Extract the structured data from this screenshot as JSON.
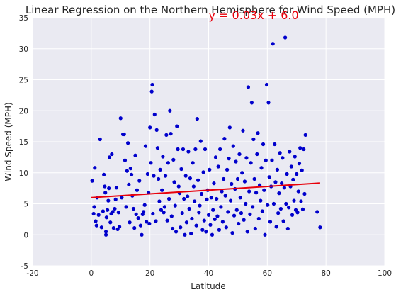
{
  "chart_data": {
    "type": "scatter",
    "title": "Linear Regression on the Northern Hemisphere for Wind Speed (MPH)",
    "xlabel": "Latitude",
    "ylabel": "Wind Speed (MPH)",
    "xlim": [
      -20,
      100
    ],
    "ylim": [
      -5,
      35
    ],
    "xticks": [
      -20,
      0,
      20,
      40,
      60,
      80,
      100
    ],
    "yticks": [
      -5,
      0,
      5,
      10,
      15,
      20,
      25,
      30,
      35
    ],
    "grid": true,
    "background_color": "#eaeaf2",
    "point_color": "#0000cc",
    "line_color": "#e8000b",
    "annotation": {
      "text": "y = 0.03x + 6.0",
      "x": 40,
      "y": 35
    },
    "regression": {
      "slope": 0.03,
      "intercept": 6.0,
      "x_range": [
        0,
        78
      ]
    },
    "points": [
      [
        0.3,
        8.7
      ],
      [
        0.8,
        3.4
      ],
      [
        1.0,
        4.5
      ],
      [
        1.2,
        10.8
      ],
      [
        1.5,
        2.2
      ],
      [
        1.8,
        1.5
      ],
      [
        2.0,
        6.0
      ],
      [
        2.5,
        3.2
      ],
      [
        3.0,
        15.4
      ],
      [
        3.5,
        1.2
      ],
      [
        4.0,
        3.8
      ],
      [
        4.3,
        9.7
      ],
      [
        4.6,
        7.8
      ],
      [
        4.8,
        6.8
      ],
      [
        5.0,
        0.5
      ],
      [
        5.0,
        0.0
      ],
      [
        5.2,
        2.8
      ],
      [
        5.5,
        4.0
      ],
      [
        5.8,
        5.5
      ],
      [
        6.0,
        7.5
      ],
      [
        6.2,
        12.5
      ],
      [
        6.5,
        2.0
      ],
      [
        6.8,
        3.4
      ],
      [
        7.0,
        13.0
      ],
      [
        7.3,
        3.7
      ],
      [
        7.6,
        1.1
      ],
      [
        8.0,
        4.2
      ],
      [
        8.3,
        5.7
      ],
      [
        8.6,
        7.6
      ],
      [
        9.0,
        0.9
      ],
      [
        9.3,
        3.6
      ],
      [
        9.6,
        1.3
      ],
      [
        10.0,
        18.8
      ],
      [
        10.4,
        6.0
      ],
      [
        10.8,
        16.2
      ],
      [
        11.2,
        16.2
      ],
      [
        11.5,
        12.0
      ],
      [
        11.9,
        4.5
      ],
      [
        12.2,
        10.3
      ],
      [
        12.5,
        14.8
      ],
      [
        12.8,
        8.1
      ],
      [
        13.1,
        2.0
      ],
      [
        13.4,
        10.7
      ],
      [
        13.7,
        9.7
      ],
      [
        14.0,
        6.3
      ],
      [
        14.4,
        4.2
      ],
      [
        14.7,
        1.1
      ],
      [
        15.0,
        12.8
      ],
      [
        15.3,
        3.3
      ],
      [
        15.6,
        7.2
      ],
      [
        16.0,
        2.7
      ],
      [
        16.4,
        8.7
      ],
      [
        16.8,
        1.5
      ],
      [
        17.2,
        0.0
      ],
      [
        17.5,
        3.3
      ],
      [
        17.8,
        3.7
      ],
      [
        18.2,
        4.8
      ],
      [
        18.5,
        14.3
      ],
      [
        18.8,
        2.1
      ],
      [
        19.2,
        9.8
      ],
      [
        19.5,
        6.8
      ],
      [
        19.8,
        1.8
      ],
      [
        20.0,
        17.3
      ],
      [
        20.3,
        11.6
      ],
      [
        20.6,
        23.1
      ],
      [
        20.8,
        24.2
      ],
      [
        21.0,
        3.4
      ],
      [
        21.3,
        9.5
      ],
      [
        21.6,
        19.4
      ],
      [
        22.0,
        2.2
      ],
      [
        22.3,
        16.9
      ],
      [
        22.6,
        14.0
      ],
      [
        22.9,
        9.0
      ],
      [
        23.2,
        5.4
      ],
      [
        23.5,
        10.5
      ],
      [
        23.8,
        4.0
      ],
      [
        24.1,
        7.2
      ],
      [
        24.4,
        12.6
      ],
      [
        24.7,
        3.6
      ],
      [
        25.0,
        4.5
      ],
      [
        25.3,
        9.5
      ],
      [
        25.6,
        16.1
      ],
      [
        25.9,
        2.3
      ],
      [
        26.2,
        11.6
      ],
      [
        26.5,
        5.8
      ],
      [
        26.8,
        20.0
      ],
      [
        27.1,
        16.3
      ],
      [
        27.4,
        3.0
      ],
      [
        27.7,
        1.0
      ],
      [
        28.0,
        12.1
      ],
      [
        28.3,
        8.5
      ],
      [
        28.6,
        4.7
      ],
      [
        28.9,
        0.5
      ],
      [
        29.2,
        17.5
      ],
      [
        29.5,
        13.8
      ],
      [
        29.8,
        7.8
      ],
      [
        30.1,
        6.7
      ],
      [
        30.4,
        1.2
      ],
      [
        30.7,
        10.6
      ],
      [
        31.0,
        3.5
      ],
      [
        31.3,
        13.8
      ],
      [
        31.6,
        5.8
      ],
      [
        31.9,
        0.0
      ],
      [
        32.2,
        9.5
      ],
      [
        32.5,
        2.0
      ],
      [
        32.8,
        6.2
      ],
      [
        33.1,
        13.4
      ],
      [
        33.4,
        4.2
      ],
      [
        33.7,
        9.1
      ],
      [
        34.0,
        0.2
      ],
      [
        34.3,
        2.6
      ],
      [
        34.6,
        11.6
      ],
      [
        34.9,
        7.8
      ],
      [
        35.2,
        5.4
      ],
      [
        35.5,
        13.8
      ],
      [
        35.8,
        1.5
      ],
      [
        36.1,
        18.7
      ],
      [
        36.4,
        8.8
      ],
      [
        36.7,
        3.6
      ],
      [
        37.0,
        4.7
      ],
      [
        37.3,
        15.1
      ],
      [
        37.6,
        6.6
      ],
      [
        37.9,
        0.8
      ],
      [
        38.2,
        10.1
      ],
      [
        38.5,
        2.3
      ],
      [
        38.8,
        13.8
      ],
      [
        39.1,
        0.5
      ],
      [
        39.4,
        5.7
      ],
      [
        39.7,
        7.2
      ],
      [
        40.0,
        3.2
      ],
      [
        40.3,
        10.5
      ],
      [
        40.6,
        1.6
      ],
      [
        40.9,
        6.0
      ],
      [
        41.2,
        0.0
      ],
      [
        41.5,
        4.0
      ],
      [
        41.8,
        8.3
      ],
      [
        42.1,
        2.5
      ],
      [
        42.4,
        12.5
      ],
      [
        42.7,
        5.8
      ],
      [
        43.0,
        3.0
      ],
      [
        43.3,
        11.0
      ],
      [
        43.6,
        0.8
      ],
      [
        43.9,
        13.8
      ],
      [
        44.2,
        4.5
      ],
      [
        44.5,
        7.0
      ],
      [
        44.8,
        2.1
      ],
      [
        45.1,
        9.0
      ],
      [
        45.4,
        15.5
      ],
      [
        45.7,
        6.3
      ],
      [
        46.0,
        1.2
      ],
      [
        46.3,
        10.5
      ],
      [
        46.6,
        3.7
      ],
      [
        46.9,
        12.3
      ],
      [
        47.2,
        17.3
      ],
      [
        47.5,
        5.5
      ],
      [
        47.8,
        8.2
      ],
      [
        48.1,
        0.3
      ],
      [
        48.4,
        14.3
      ],
      [
        48.7,
        3.1
      ],
      [
        49.0,
        7.4
      ],
      [
        49.3,
        11.8
      ],
      [
        49.6,
        4.0
      ],
      [
        49.9,
        9.0
      ],
      [
        50.2,
        1.8
      ],
      [
        50.5,
        13.0
      ],
      [
        50.8,
        6.0
      ],
      [
        51.1,
        3.5
      ],
      [
        51.4,
        10.0
      ],
      [
        51.7,
        16.8
      ],
      [
        52.0,
        2.4
      ],
      [
        52.3,
        8.6
      ],
      [
        52.6,
        5.0
      ],
      [
        52.9,
        12.4
      ],
      [
        53.2,
        0.5
      ],
      [
        53.5,
        23.8
      ],
      [
        53.8,
        7.0
      ],
      [
        54.1,
        3.3
      ],
      [
        54.4,
        11.6
      ],
      [
        54.7,
        21.3
      ],
      [
        55.0,
        4.5
      ],
      [
        55.3,
        15.4
      ],
      [
        55.6,
        9.0
      ],
      [
        55.9,
        1.0
      ],
      [
        56.2,
        6.8
      ],
      [
        56.5,
        13.0
      ],
      [
        56.8,
        16.4
      ],
      [
        57.1,
        2.6
      ],
      [
        57.4,
        8.0
      ],
      [
        57.7,
        5.5
      ],
      [
        58.0,
        10.8
      ],
      [
        58.3,
        3.8
      ],
      [
        58.6,
        14.6
      ],
      [
        58.9,
        7.2
      ],
      [
        59.2,
        0.0
      ],
      [
        59.5,
        12.0
      ],
      [
        59.8,
        24.2
      ],
      [
        60.1,
        4.8
      ],
      [
        60.4,
        21.3
      ],
      [
        60.7,
        9.3
      ],
      [
        61.0,
        2.1
      ],
      [
        61.3,
        7.8
      ],
      [
        61.6,
        12.0
      ],
      [
        61.9,
        30.8
      ],
      [
        62.2,
        5.0
      ],
      [
        62.5,
        14.6
      ],
      [
        62.8,
        8.5
      ],
      [
        63.1,
        1.3
      ],
      [
        63.4,
        10.5
      ],
      [
        63.7,
        3.5
      ],
      [
        64.0,
        6.7
      ],
      [
        64.3,
        13.2
      ],
      [
        64.6,
        4.2
      ],
      [
        64.9,
        8.3
      ],
      [
        65.2,
        12.4
      ],
      [
        65.5,
        2.2
      ],
      [
        65.8,
        7.6
      ],
      [
        66.1,
        31.8
      ],
      [
        66.4,
        5.0
      ],
      [
        66.7,
        9.8
      ],
      [
        67.0,
        1.0
      ],
      [
        67.3,
        4.4
      ],
      [
        67.6,
        13.4
      ],
      [
        67.9,
        7.8
      ],
      [
        68.2,
        11.0
      ],
      [
        68.5,
        3.2
      ],
      [
        68.8,
        8.9
      ],
      [
        69.1,
        5.5
      ],
      [
        69.4,
        12.6
      ],
      [
        69.7,
        4.0
      ],
      [
        70.0,
        9.8
      ],
      [
        70.3,
        3.6
      ],
      [
        70.6,
        7.0
      ],
      [
        70.9,
        11.5
      ],
      [
        71.2,
        14.0
      ],
      [
        71.5,
        5.4
      ],
      [
        71.8,
        10.4
      ],
      [
        72.1,
        4.1
      ],
      [
        72.4,
        13.8
      ],
      [
        72.7,
        6.6
      ],
      [
        73.0,
        16.1
      ],
      [
        77.0,
        3.7
      ],
      [
        78.0,
        1.2
      ]
    ]
  }
}
